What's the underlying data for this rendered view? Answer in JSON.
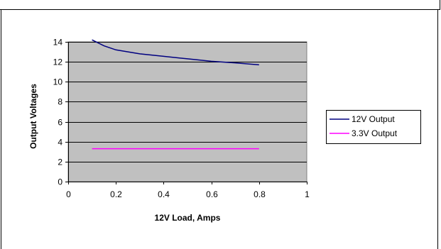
{
  "chart_data": {
    "type": "line",
    "title": "",
    "xlabel": "12V Load, Amps",
    "ylabel": "Output Voltages",
    "xlim": [
      0,
      1
    ],
    "ylim": [
      0,
      14
    ],
    "x_ticks": [
      0,
      0.2,
      0.4,
      0.6,
      0.8,
      1
    ],
    "x_tick_labels": [
      "0",
      "0.2",
      "0.4",
      "0.6",
      "0.8",
      "1"
    ],
    "y_ticks": [
      0,
      2,
      4,
      6,
      8,
      10,
      12,
      14
    ],
    "grid": "horizontal",
    "plot_background": "#c0c0c0",
    "legend_position": "right",
    "series": [
      {
        "name": "12V Output",
        "color": "#000080",
        "x": [
          0.1,
          0.15,
          0.2,
          0.3,
          0.4,
          0.5,
          0.6,
          0.7,
          0.8
        ],
        "y": [
          14.2,
          13.6,
          13.2,
          12.8,
          12.55,
          12.3,
          12.05,
          11.9,
          11.7
        ]
      },
      {
        "name": "3.3V Output",
        "color": "#ff00ff",
        "x": [
          0.1,
          0.2,
          0.3,
          0.4,
          0.5,
          0.6,
          0.7,
          0.8
        ],
        "y": [
          3.3,
          3.3,
          3.3,
          3.3,
          3.3,
          3.3,
          3.3,
          3.3
        ]
      }
    ]
  }
}
